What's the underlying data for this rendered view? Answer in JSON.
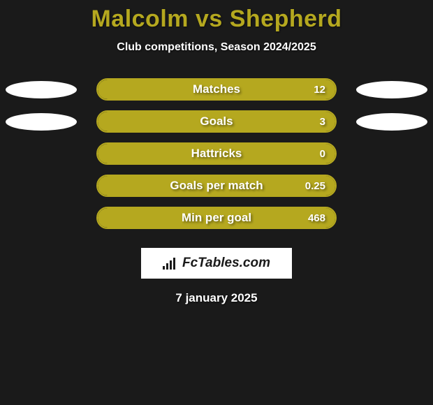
{
  "title": "Malcolm vs Shepherd",
  "subtitle": "Club competitions, Season 2024/2025",
  "date": "7 january 2025",
  "logo_text": "FcTables.com",
  "colors": {
    "accent": "#b5a81f",
    "background": "#1a1a1a",
    "ellipse": "#ffffff",
    "text": "#ffffff"
  },
  "stats": [
    {
      "label": "Matches",
      "value": "12",
      "fill_pct": 100,
      "ellipse_left": true,
      "ellipse_right": true
    },
    {
      "label": "Goals",
      "value": "3",
      "fill_pct": 100,
      "ellipse_left": true,
      "ellipse_right": true
    },
    {
      "label": "Hattricks",
      "value": "0",
      "fill_pct": 100,
      "ellipse_left": false,
      "ellipse_right": false
    },
    {
      "label": "Goals per match",
      "value": "0.25",
      "fill_pct": 100,
      "ellipse_left": false,
      "ellipse_right": false
    },
    {
      "label": "Min per goal",
      "value": "468",
      "fill_pct": 100,
      "ellipse_left": false,
      "ellipse_right": false
    }
  ]
}
